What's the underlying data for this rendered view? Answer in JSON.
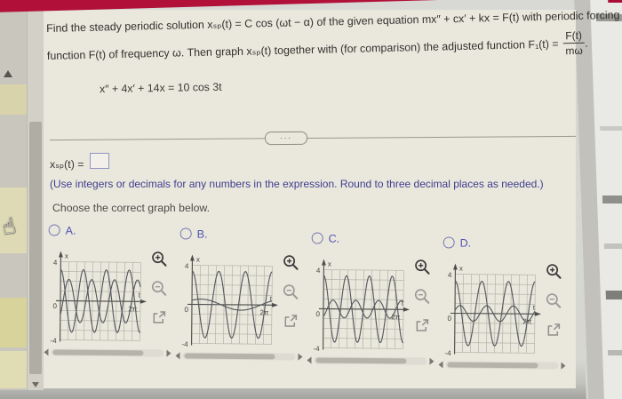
{
  "app": {
    "header_color": "#b11038",
    "highlight_yellow": "#e0daa4",
    "accent_blue": "#4d53b2",
    "hint_blue": "#3c3f8d"
  },
  "problem": {
    "line1": "Find the steady periodic solution xₛₚ(t) = C cos (ωt − α) of the given equation mx″ + cx′ + kx = F(t) with periodic forcing",
    "line2_prefix": "function F(t) of frequency ω. Then graph xₛₚ(t) together with (for comparison) the adjusted function F₁(t) =",
    "fraction": {
      "numerator": "F(t)",
      "denominator": "mω"
    },
    "line2_suffix": ".",
    "equation": "x″ + 4x′ + 14x = 10 cos 3t"
  },
  "divider": {
    "dots_label": "..."
  },
  "answer": {
    "label": "xₛₚ(t) =",
    "input_value": "",
    "hint": "(Use integers or decimals for any numbers in the expression. Round to three decimal places as needed.)",
    "choose_prompt": "Choose the correct graph below."
  },
  "options": [
    {
      "label": "A.",
      "selected": false
    },
    {
      "label": "B.",
      "selected": false
    },
    {
      "label": "C.",
      "selected": false
    },
    {
      "label": "D.",
      "selected": false
    }
  ],
  "graph_axis": {
    "y_max_label": "4",
    "y_min_label": "-4",
    "y_axis_label": "x",
    "x_axis_label": "t",
    "x_end_label": "2π",
    "origin_label": "0"
  },
  "icons": {
    "hand_cursor": "☝",
    "zoom_in": "magnifier-plus",
    "zoom_out": "magnifier-minus",
    "expand": "external-link"
  },
  "chart_data": [
    {
      "option": "A",
      "type": "line",
      "x_range_rad": [
        0,
        6.283
      ],
      "ylim": [
        -4,
        4
      ],
      "xlabel": "t",
      "ylabel": "x",
      "x_end_tick": "2π",
      "grid": true,
      "series": [
        {
          "name": "curve1",
          "model": "A*cos(f*t+p)",
          "amplitude": 3.2,
          "frequency": 3.5,
          "phase": 0
        },
        {
          "name": "curve2",
          "model": "A*cos(f*t+p)",
          "amplitude": 2.2,
          "frequency": 3.5,
          "phase": -2.3
        }
      ]
    },
    {
      "option": "B",
      "type": "line",
      "x_range_rad": [
        0,
        6.283
      ],
      "ylim": [
        -4,
        4
      ],
      "xlabel": "t",
      "ylabel": "x",
      "x_end_tick": "2π",
      "grid": true,
      "series": [
        {
          "name": "curve1",
          "model": "A*cos(f*t+p)",
          "amplitude": 3.4,
          "frequency": 3,
          "phase": 0
        },
        {
          "name": "curve2",
          "model": "A*cos(f*t+p)",
          "amplitude": 0.55,
          "frequency": 1,
          "phase": -0.7
        }
      ]
    },
    {
      "option": "C",
      "type": "line",
      "x_range_rad": [
        0,
        6.283
      ],
      "ylim": [
        -4,
        4
      ],
      "xlabel": "t",
      "ylabel": "x",
      "x_end_tick": "2π",
      "grid": true,
      "series": [
        {
          "name": "curve1",
          "model": "A*cos(f*t+p)",
          "amplitude": 3.4,
          "frequency": 3.5,
          "phase": 0
        },
        {
          "name": "curve2",
          "model": "A*cos(f*t+p)",
          "amplitude": 0.9,
          "frequency": 3.5,
          "phase": -2.6
        }
      ]
    },
    {
      "option": "D",
      "type": "line",
      "x_range_rad": [
        0,
        6.283
      ],
      "ylim": [
        -4,
        4
      ],
      "xlabel": "t",
      "ylabel": "x",
      "x_end_tick": "2π",
      "grid": true,
      "series": [
        {
          "name": "curve1",
          "model": "A*cos(f*t+p)",
          "amplitude": 3.3,
          "frequency": 3,
          "phase": 0
        },
        {
          "name": "curve2",
          "model": "A*cos(f*t+p)",
          "amplitude": 0.8,
          "frequency": 3,
          "phase": -1.2
        }
      ]
    }
  ]
}
